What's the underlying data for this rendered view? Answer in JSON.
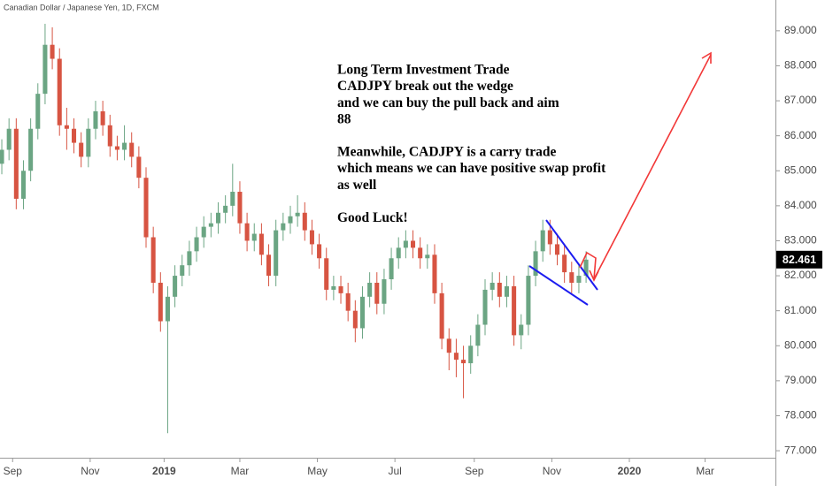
{
  "chart_data": {
    "type": "candlestick",
    "title": "Canadian Dollar / Japanese Yen, 1D, FXCM",
    "annotation": [
      [
        "Long Term Investment Trade",
        "CADJPY break out the wedge",
        "and we can buy the pull back and aim",
        "88"
      ],
      [
        "Meanwhile, CADJPY is a carry trade",
        "which means we can have positive swap profit",
        "as well"
      ],
      [
        "Good Luck!"
      ]
    ],
    "up_color": "#6ba583",
    "down_color": "#d75442",
    "x": [
      -6,
      -2,
      2,
      6,
      10,
      14,
      18,
      22,
      26,
      30,
      34,
      38,
      42,
      46,
      50,
      54,
      58,
      62,
      66,
      70,
      74,
      78,
      82,
      86,
      90,
      94,
      98,
      102,
      106,
      110,
      114,
      118,
      122,
      126,
      130,
      134,
      138,
      142,
      146,
      150,
      154,
      158,
      162,
      166,
      170,
      174,
      178,
      182,
      186,
      190,
      194,
      198,
      202,
      206,
      210,
      214,
      218,
      222,
      226,
      230,
      234,
      238,
      242,
      246,
      250,
      254,
      258,
      262,
      266,
      270,
      274,
      278,
      282,
      286,
      290,
      294,
      298,
      302,
      306,
      310,
      314,
      318
    ],
    "open": [
      85.2,
      85.6,
      86.2,
      84.2,
      85.0,
      86.2,
      87.2,
      88.6,
      88.2,
      86.3,
      86.2,
      85.8,
      85.4,
      86.2,
      86.7,
      86.3,
      85.7,
      85.6,
      85.8,
      85.4,
      84.8,
      83.1,
      81.8,
      80.7,
      81.4,
      82.0,
      82.3,
      82.7,
      83.1,
      83.4,
      83.5,
      83.8,
      84.0,
      84.4,
      83.5,
      83.0,
      83.2,
      82.6,
      82.0,
      83.3,
      83.5,
      83.7,
      83.8,
      83.3,
      82.9,
      82.5,
      81.6,
      81.7,
      81.5,
      81.0,
      80.5,
      81.4,
      81.8,
      81.2,
      81.9,
      82.5,
      82.8,
      83.0,
      82.8,
      82.5,
      82.6,
      81.5,
      80.2,
      79.8,
      79.6,
      79.5,
      80.0,
      80.6,
      81.6,
      81.8,
      81.4,
      81.7,
      80.3,
      80.6,
      82.0,
      82.7,
      83.3,
      82.9,
      82.6,
      82.1,
      81.8,
      82.0
    ],
    "high": [
      85.9,
      86.5,
      86.5,
      85.3,
      86.5,
      87.5,
      89.2,
      89.1,
      88.5,
      86.8,
      86.5,
      86.1,
      86.5,
      87.0,
      87.0,
      86.6,
      86.0,
      86.3,
      86.1,
      85.7,
      85.1,
      83.4,
      82.1,
      81.7,
      82.3,
      82.6,
      83.0,
      83.4,
      83.7,
      83.8,
      84.1,
      84.3,
      85.2,
      84.7,
      83.8,
      83.5,
      83.5,
      82.9,
      83.6,
      83.8,
      84.0,
      84.3,
      84.1,
      83.6,
      83.2,
      82.8,
      82.0,
      82.0,
      81.8,
      81.3,
      81.7,
      82.1,
      82.1,
      82.2,
      82.8,
      83.1,
      83.3,
      83.3,
      83.1,
      82.9,
      82.9,
      81.8,
      80.5,
      80.2,
      80.0,
      80.3,
      80.9,
      81.9,
      82.1,
      82.1,
      82.0,
      82.0,
      80.9,
      82.3,
      83.0,
      83.6,
      83.6,
      83.2,
      82.9,
      82.4,
      82.3,
      82.7
    ],
    "low": [
      84.9,
      85.3,
      83.9,
      83.9,
      84.7,
      85.9,
      86.9,
      87.9,
      86.0,
      85.6,
      85.5,
      85.1,
      85.1,
      85.9,
      86.0,
      85.4,
      85.3,
      85.3,
      85.1,
      84.5,
      82.8,
      81.5,
      80.4,
      77.5,
      81.1,
      81.7,
      82.0,
      82.4,
      82.8,
      83.1,
      83.2,
      83.5,
      83.7,
      83.2,
      82.7,
      82.7,
      82.3,
      81.7,
      81.7,
      83.0,
      83.2,
      83.4,
      83.0,
      82.6,
      82.2,
      81.3,
      81.3,
      81.2,
      80.7,
      80.1,
      80.2,
      81.1,
      80.9,
      80.9,
      81.6,
      82.2,
      82.5,
      82.5,
      82.2,
      82.2,
      81.2,
      79.9,
      79.3,
      79.1,
      78.5,
      79.2,
      79.7,
      80.3,
      81.3,
      81.1,
      81.1,
      80.0,
      79.9,
      80.3,
      81.7,
      82.4,
      82.6,
      82.3,
      81.8,
      81.5,
      81.5,
      81.8
    ],
    "close": [
      85.6,
      86.2,
      84.2,
      85.0,
      86.2,
      87.2,
      88.6,
      88.2,
      86.3,
      86.2,
      85.8,
      85.4,
      86.2,
      86.7,
      86.3,
      85.7,
      85.6,
      85.8,
      85.4,
      84.8,
      83.1,
      81.8,
      80.7,
      81.4,
      82.0,
      82.3,
      82.7,
      83.1,
      83.4,
      83.5,
      83.8,
      84.0,
      84.4,
      83.5,
      83.0,
      83.2,
      82.6,
      82.0,
      83.3,
      83.5,
      83.7,
      83.8,
      83.3,
      82.9,
      82.5,
      81.6,
      81.7,
      81.5,
      81.0,
      80.5,
      81.4,
      81.8,
      81.2,
      81.9,
      82.5,
      82.8,
      83.0,
      82.8,
      82.5,
      82.6,
      81.5,
      80.2,
      79.8,
      79.6,
      79.5,
      80.0,
      80.6,
      81.6,
      81.8,
      81.4,
      81.7,
      80.3,
      80.6,
      82.0,
      82.7,
      83.3,
      82.9,
      82.6,
      82.1,
      81.8,
      82.0,
      82.461
    ],
    "xlim": [
      -7,
      423
    ],
    "xticks": [
      {
        "value": 0,
        "label": "Sep"
      },
      {
        "value": 43,
        "label": "Nov"
      },
      {
        "value": 84,
        "label": "2019"
      },
      {
        "value": 126,
        "label": "Mar"
      },
      {
        "value": 169,
        "label": "May"
      },
      {
        "value": 212,
        "label": "Jul"
      },
      {
        "value": 256,
        "label": "Sep"
      },
      {
        "value": 299,
        "label": "Nov"
      },
      {
        "value": 342,
        "label": "2020"
      },
      {
        "value": 384,
        "label": "Mar"
      }
    ],
    "ylim": [
      76.8,
      89.88
    ],
    "yticks": [
      {
        "value": 77,
        "label": "77.000"
      },
      {
        "value": 78,
        "label": "78.000"
      },
      {
        "value": 79,
        "label": "79.000"
      },
      {
        "value": 80,
        "label": "80.000"
      },
      {
        "value": 81,
        "label": "81.000"
      },
      {
        "value": 82,
        "label": "82.000"
      },
      {
        "value": 83,
        "label": "83.000"
      },
      {
        "value": 84,
        "label": "84.000"
      },
      {
        "value": 85,
        "label": "85.000"
      },
      {
        "value": 86,
        "label": "86.000"
      },
      {
        "value": 87,
        "label": "87.000"
      },
      {
        "value": 88,
        "label": "88.000"
      },
      {
        "value": 89,
        "label": "89.000"
      }
    ]
  }
}
